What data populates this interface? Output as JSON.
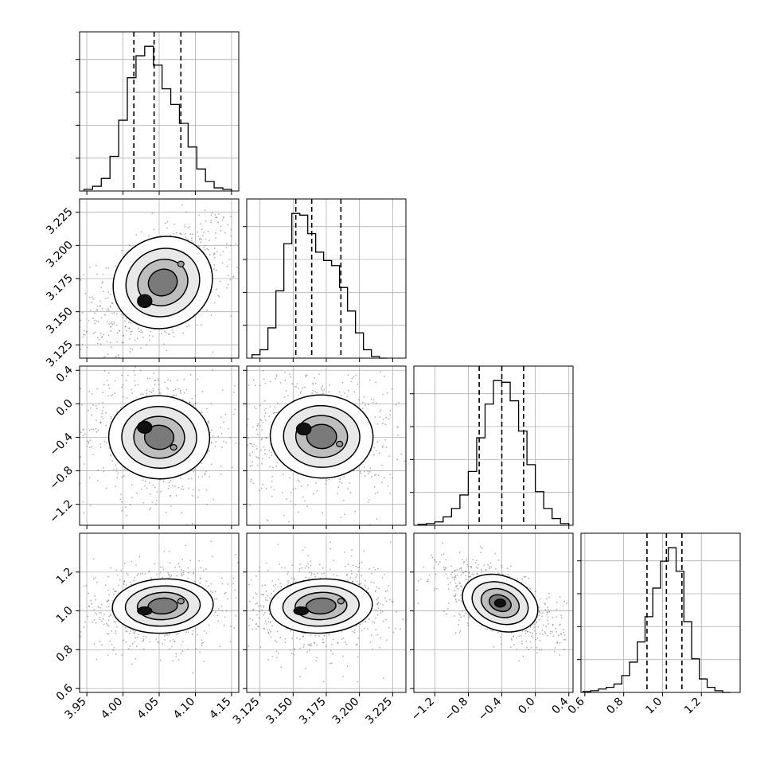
{
  "chart_data": {
    "type": "corner",
    "grid": true,
    "parameters": [
      {
        "range": [
          3.94,
          4.16
        ],
        "ticks": [
          "3.95",
          "4.00",
          "4.05",
          "4.10",
          "4.15"
        ],
        "tick_values": [
          3.95,
          4.0,
          4.05,
          4.1,
          4.15
        ],
        "quantiles": [
          4.015,
          4.043,
          4.08
        ],
        "hist_bins": [
          3.946,
          3.958,
          3.97,
          3.982,
          3.994,
          4.006,
          4.018,
          4.03,
          4.042,
          4.054,
          4.066,
          4.078,
          4.09,
          4.102,
          4.114,
          4.126,
          4.138,
          4.15
        ],
        "hist_values": [
          1,
          3,
          8,
          22,
          45,
          72,
          86,
          92,
          80,
          65,
          55,
          43,
          28,
          14,
          6,
          2,
          1
        ]
      },
      {
        "range": [
          3.115,
          3.235
        ],
        "ticks": [
          "3.125",
          "3.150",
          "3.175",
          "3.200",
          "3.225"
        ],
        "tick_values": [
          3.125,
          3.15,
          3.175,
          3.2,
          3.225
        ],
        "quantiles": [
          3.152,
          3.164,
          3.186
        ],
        "hist_bins": [
          3.119,
          3.125,
          3.131,
          3.137,
          3.143,
          3.149,
          3.155,
          3.161,
          3.167,
          3.173,
          3.179,
          3.185,
          3.191,
          3.197,
          3.203,
          3.209,
          3.215,
          3.221
        ],
        "hist_values": [
          2,
          5,
          18,
          40,
          68,
          86,
          85,
          74,
          63,
          58,
          55,
          42,
          28,
          15,
          5,
          1,
          0
        ]
      },
      {
        "range": [
          -1.45,
          0.45
        ],
        "ticks": [
          "−1.2",
          "−0.8",
          "−0.4",
          "0.0",
          "0.4"
        ],
        "tick_values": [
          -1.2,
          -0.8,
          -0.4,
          0.0,
          0.4
        ],
        "quantiles": [
          -0.67,
          -0.4,
          -0.14
        ],
        "hist_bins": [
          -1.4,
          -1.3,
          -1.2,
          -1.1,
          -1.0,
          -0.9,
          -0.8,
          -0.7,
          -0.6,
          -0.5,
          -0.4,
          -0.3,
          -0.2,
          -0.1,
          0.0,
          0.1,
          0.2,
          0.3,
          0.4
        ],
        "hist_values": [
          0.5,
          1,
          2,
          5,
          10,
          18,
          32,
          52,
          72,
          86,
          85,
          74,
          56,
          36,
          20,
          10,
          4,
          1
        ]
      },
      {
        "range": [
          0.58,
          1.4
        ],
        "ticks": [
          "0.6",
          "0.8",
          "1.0",
          "1.2"
        ],
        "tick_values": [
          0.6,
          0.8,
          1.0,
          1.2
        ],
        "quantiles": [
          0.92,
          1.02,
          1.1
        ],
        "hist_bins": [
          0.59,
          0.63,
          0.67,
          0.71,
          0.75,
          0.79,
          0.83,
          0.87,
          0.91,
          0.95,
          0.99,
          1.03,
          1.07,
          1.11,
          1.15,
          1.19,
          1.23,
          1.27,
          1.31,
          1.35
        ],
        "hist_values": [
          0.5,
          1,
          2,
          3,
          5,
          10,
          18,
          30,
          45,
          62,
          78,
          86,
          72,
          42,
          20,
          8,
          3,
          1,
          0
        ]
      }
    ],
    "contour_panels": [
      {
        "x_param": 0,
        "y_param": 1,
        "peak": [
          4.03,
          3.158
        ],
        "secondary": [
          4.08,
          3.186
        ],
        "spread": [
          0.045,
          0.022
        ],
        "corr": 0.55
      },
      {
        "x_param": 0,
        "y_param": 2,
        "peak": [
          4.03,
          -0.28
        ],
        "secondary": [
          4.07,
          -0.52
        ],
        "spread": [
          0.045,
          0.32
        ],
        "corr": -0.05
      },
      {
        "x_param": 1,
        "y_param": 2,
        "peak": [
          3.158,
          -0.3
        ],
        "secondary": [
          3.185,
          -0.48
        ],
        "spread": [
          0.025,
          0.32
        ],
        "corr": -0.05
      },
      {
        "x_param": 0,
        "y_param": 3,
        "peak": [
          4.03,
          1.0
        ],
        "secondary": [
          4.08,
          1.05
        ],
        "spread": [
          0.045,
          0.09
        ],
        "corr": 0.1
      },
      {
        "x_param": 1,
        "y_param": 3,
        "peak": [
          3.156,
          1.0
        ],
        "secondary": [
          3.186,
          1.05
        ],
        "spread": [
          0.025,
          0.09
        ],
        "corr": 0.1
      },
      {
        "x_param": 2,
        "y_param": 3,
        "peak": [
          -0.42,
          1.04
        ],
        "secondary": [
          -0.42,
          1.04
        ],
        "spread": [
          0.3,
          0.09
        ],
        "corr": -0.6
      }
    ],
    "colors": {
      "line": "#000000",
      "grid": "#b0b0b0",
      "points": "#555555",
      "axes": "#000000"
    }
  }
}
